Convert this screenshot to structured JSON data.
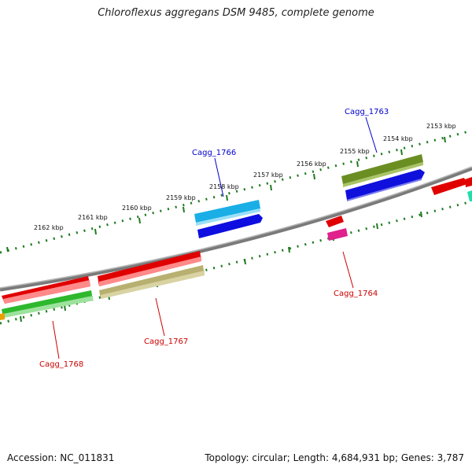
{
  "title": "Chloroflexus aggregans DSM 9485, complete genome",
  "footer": {
    "accession": "Accession: NC_011831",
    "topology": "Topology: circular; Length: 4,684,931 bp; Genes: 3,787"
  },
  "ruler_labels": [
    "2153 kbp",
    "2154 kbp",
    "2155 kbp",
    "2156 kbp",
    "2157 kbp",
    "2158 kbp",
    "2159 kbp",
    "2160 kbp",
    "2161 kbp",
    "2162 kbp"
  ],
  "gene_labels": {
    "g1763": "Cagg_1763",
    "g1766": "Cagg_1766",
    "g1764": "Cagg_1764",
    "g1767": "Cagg_1767",
    "g1768": "Cagg_1768"
  },
  "colors": {
    "backbone": "#888888",
    "ticks": "#1f7a1f",
    "label_blue": "#0000cc",
    "label_red": "#cc0000"
  }
}
